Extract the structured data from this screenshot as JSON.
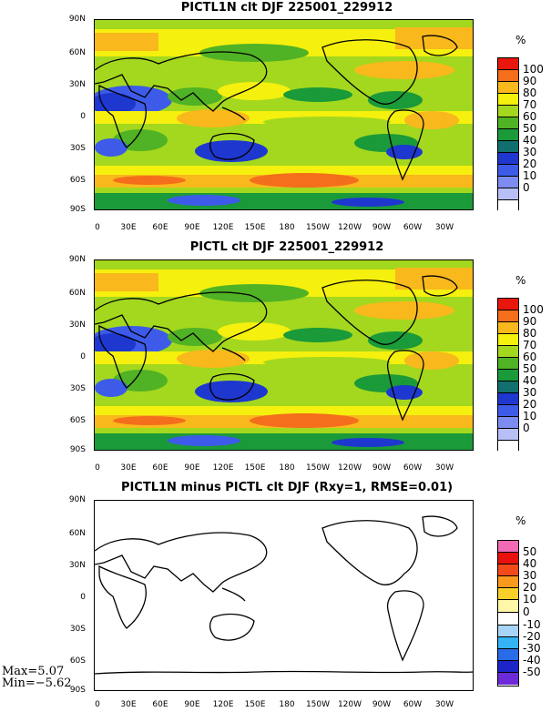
{
  "panels": [
    {
      "title": "PICTL1N clt DJF 225001_229912",
      "unit": "%",
      "levels": [
        "100",
        "90",
        "80",
        "70",
        "60",
        "50",
        "40",
        "30",
        "20",
        "10",
        "0"
      ],
      "colors": [
        "#e8160d",
        "#f46e1b",
        "#f9b81c",
        "#f5f00d",
        "#a3d81e",
        "#50b225",
        "#1a9a39",
        "#11706e",
        "#1e37cf",
        "#3d5be8",
        "#7d8cf0",
        "#b8bff6",
        "#ffffff"
      ]
    },
    {
      "title": "PICTL clt DJF 225001_229912",
      "unit": "%",
      "levels": [
        "100",
        "90",
        "80",
        "70",
        "60",
        "50",
        "40",
        "30",
        "20",
        "10",
        "0"
      ],
      "colors": [
        "#e8160d",
        "#f46e1b",
        "#f9b81c",
        "#f5f00d",
        "#a3d81e",
        "#50b225",
        "#1a9a39",
        "#11706e",
        "#1e37cf",
        "#3d5be8",
        "#7d8cf0",
        "#b8bff6",
        "#ffffff"
      ]
    },
    {
      "title": "PICTL1N minus PICTL clt DJF (Rxy=1, RMSE=0.01)",
      "unit": "%",
      "levels": [
        "50",
        "40",
        "30",
        "20",
        "10",
        "0",
        "-10",
        "-20",
        "-30",
        "-40",
        "-50"
      ],
      "colors": [
        "#f06bb4",
        "#e8110d",
        "#f24a1a",
        "#f99a1c",
        "#fbcf2a",
        "#fff6a6",
        "#ffffff",
        "#a8d4f7",
        "#34b4f5",
        "#2a6be8",
        "#1d25c9",
        "#6d2ad8"
      ]
    }
  ],
  "lat_labels": [
    "90N",
    "60N",
    "30N",
    "0",
    "30S",
    "60S",
    "90S"
  ],
  "lon_labels": [
    "0",
    "30E",
    "60E",
    "90E",
    "120E",
    "150E",
    "180",
    "150W",
    "120W",
    "90W",
    "60W",
    "30W"
  ],
  "stats": {
    "max": "Max=5.07",
    "min": "Min=−5.62"
  }
}
